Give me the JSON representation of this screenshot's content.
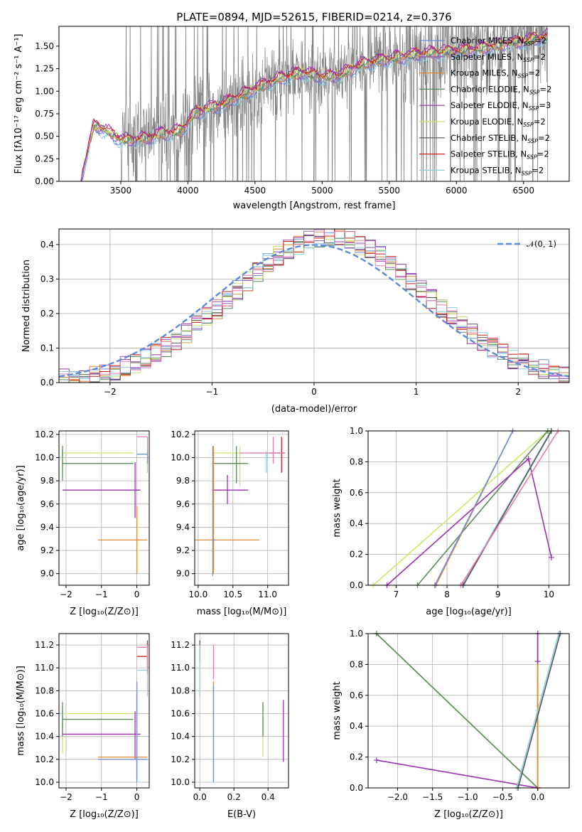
{
  "colors": {
    "Chabrier MILES": "#6f8fd6",
    "Salpeter MILES": "#9b59b6",
    "Kroupa MILES": "#e08a3c",
    "Chabrier ELODIE": "#5c8a5c",
    "Salpeter ELODIE": "#9b30b0",
    "Kroupa ELODIE": "#c8e86a",
    "Chabrier STELIB": "#555555",
    "Salpeter STELIB": "#cc1f1f",
    "Kroupa STELIB": "#8fd0dc",
    "pink": "#e67ab0",
    "normal": "#5b8bd6",
    "data": "#808080"
  },
  "chart_data": [
    {
      "id": "spectrum",
      "type": "line",
      "title": "PLATE=0894, MJD=52615, FIBERID=0214, z=0.376",
      "xlabel": "wavelength [Angstrom, rest frame]",
      "ylabel": "Flux [f_λ10^-17 erg cm^-2 s^-1 A^-1]",
      "xlim": [
        3040,
        6840
      ],
      "ylim": [
        0,
        1.72
      ],
      "xticks": [
        3500,
        4000,
        4500,
        5000,
        5500,
        6000,
        6500
      ],
      "yticks": [
        0.0,
        0.25,
        0.5,
        0.75,
        1.0,
        1.25,
        1.5
      ],
      "legend_position": "right",
      "legend": [
        "Chabrier MILES, N_SSP=2",
        "Salpeter MILES, N_SSP=2",
        "Kroupa MILES, N_SSP=2",
        "Chabrier ELODIE, N_SSP=2",
        "Salpeter ELODIE, N_SSP=3",
        "Kroupa ELODIE, N_SSP=2",
        "Chabrier STELIB, N_SSP=2",
        "Salpeter STELIB, N_SSP=2",
        "Kroupa STELIB, N_SSP=2"
      ],
      "continuum": {
        "x": [
          3200,
          3300,
          3400,
          3500,
          3700,
          3800,
          3950,
          4050,
          4150,
          4250,
          4400,
          4550,
          4700,
          4850,
          5000,
          5150,
          5300,
          5500,
          5700,
          5900,
          6100,
          6300,
          6500,
          6680
        ],
        "y": [
          0.0,
          0.62,
          0.55,
          0.45,
          0.47,
          0.52,
          0.55,
          0.75,
          0.8,
          0.85,
          0.95,
          1.05,
          1.15,
          1.2,
          1.15,
          1.18,
          1.3,
          1.35,
          1.4,
          1.43,
          1.45,
          1.5,
          1.55,
          1.6
        ]
      }
    },
    {
      "id": "residuals",
      "type": "line",
      "xlabel": "(data-model)/error",
      "ylabel": "Normed distribution",
      "xlim": [
        -2.5,
        2.5
      ],
      "ylim": [
        0,
        0.445
      ],
      "xticks": [
        -2,
        -1,
        0,
        1,
        2
      ],
      "yticks": [
        0.0,
        0.1,
        0.2,
        0.3,
        0.4
      ],
      "legend": [
        "𝒩(0, 1)"
      ],
      "bin_width": 0.1,
      "bins_center": [
        0.0,
        0.012,
        0.02,
        0.03,
        0.04,
        0.055,
        0.07,
        0.085,
        0.1,
        0.12,
        0.14,
        0.16,
        0.19,
        0.21,
        0.23,
        0.26,
        0.29,
        0.31,
        0.33,
        0.35,
        0.37,
        0.38,
        0.39,
        0.4,
        0.41,
        0.4,
        0.39,
        0.38,
        0.36,
        0.35,
        0.33,
        0.31,
        0.28,
        0.26,
        0.24,
        0.22,
        0.2,
        0.19,
        0.17,
        0.15,
        0.13,
        0.12,
        0.1,
        0.09,
        0.08,
        0.075,
        0.07,
        0.06,
        0.05,
        0.04
      ]
    },
    {
      "id": "age-vs-Z",
      "type": "scatter",
      "xlabel": "Z [log10(Z/Z⊙)]",
      "ylabel": "age  [log10(age/yr)]",
      "xlim": [
        -2.2,
        0.35
      ],
      "ylim": [
        8.9,
        10.23
      ],
      "xticks": [
        -2,
        -1,
        0
      ],
      "yticks": [
        9.0,
        9.2,
        9.4,
        9.6,
        9.8,
        10.0,
        10.2
      ],
      "series": [
        {
          "color": "Kroupa ELODIE",
          "h": [
            -2.1,
            -0.1,
            10.04
          ],
          "v": [
            -2.1,
            9.92,
            10.1
          ]
        },
        {
          "color": "Chabrier ELODIE",
          "h": [
            -2.1,
            -0.1,
            9.95
          ],
          "v": [
            -2.1,
            9.8,
            10.1
          ]
        },
        {
          "color": "Salpeter ELODIE",
          "h": [
            -2.1,
            0.1,
            9.72
          ],
          "v": [
            -0.05,
            9.48,
            9.96
          ]
        },
        {
          "color": "Kroupa MILES",
          "h": [
            -1.1,
            0.3,
            9.29
          ],
          "v": [
            0.0,
            9.0,
            9.58
          ]
        },
        {
          "color": "pink",
          "h": [
            0.0,
            0.3,
            10.18
          ],
          "v": [
            0.3,
            10.05,
            10.18
          ]
        },
        {
          "color": "Kroupa STELIB",
          "h": [
            0.0,
            0.3,
            10.03
          ],
          "v": [
            0.3,
            9.87,
            10.04
          ]
        },
        {
          "color": "Chabrier MILES",
          "h": [
            0.0,
            0.3,
            10.03
          ],
          "v": [
            0.3,
            9.95,
            10.05
          ]
        }
      ]
    },
    {
      "id": "age-vs-mass",
      "type": "scatter",
      "xlabel": "mass [log10(M/M⊙)]",
      "xlim": [
        9.95,
        11.3
      ],
      "ylim": [
        8.9,
        10.23
      ],
      "xticks": [
        10.0,
        10.5,
        11.0
      ],
      "yticks": [
        9.0,
        9.2,
        9.4,
        9.6,
        9.8,
        10.0,
        10.2
      ],
      "series": [
        {
          "color": "Kroupa ELODIE",
          "h": [
            10.2,
            10.62,
            10.04
          ],
          "v": [
            10.6,
            9.75,
            10.1
          ]
        },
        {
          "color": "Chabrier ELODIE",
          "h": [
            10.2,
            10.72,
            9.95
          ],
          "v": [
            10.55,
            9.78,
            10.1
          ]
        },
        {
          "color": "Salpeter ELODIE",
          "h": [
            10.2,
            10.72,
            9.72
          ],
          "v": [
            10.42,
            9.6,
            9.85
          ]
        },
        {
          "color": "Kroupa MILES",
          "h": [
            9.95,
            10.88,
            9.29
          ],
          "v": [
            10.22,
            9.0,
            10.1
          ]
        },
        {
          "color": "Chabrier MILES",
          "h": [
            10.2,
            10.25,
            9.29
          ],
          "v": [
            10.21,
            8.98,
            10.1
          ]
        },
        {
          "color": "Kroupa STELIB",
          "h": [
            10.75,
            11.1,
            10.04
          ],
          "v": [
            10.98,
            9.87,
            10.05
          ]
        },
        {
          "color": "Salpeter STELIB",
          "h": [
            11.05,
            11.25,
            10.04
          ],
          "v": [
            11.2,
            9.87,
            10.18
          ]
        },
        {
          "color": "pink",
          "h": [
            10.6,
            11.25,
            10.04
          ],
          "v": [
            11.08,
            9.95,
            10.18
          ]
        }
      ]
    },
    {
      "id": "weight-vs-age",
      "type": "line",
      "xlabel": "age  [log10(age/yr)]",
      "ylabel": "mass weight",
      "xlim": [
        6.45,
        10.4
      ],
      "ylim": [
        0,
        1
      ],
      "xticks": [
        7,
        8,
        9,
        10
      ],
      "yticks": [
        0.0,
        0.2,
        0.4,
        0.6,
        0.8,
        1.0
      ],
      "series": [
        {
          "color": "Kroupa ELODIE",
          "x": [
            6.55,
            9.98
          ],
          "y": [
            0.0,
            1.0
          ]
        },
        {
          "color": "Chabrier ELODIE",
          "x": [
            7.42,
            9.98
          ],
          "y": [
            0.0,
            1.0
          ]
        },
        {
          "color": "Salpeter ELODIE",
          "x": [
            6.82,
            9.6,
            10.05
          ],
          "y": [
            0.0,
            0.82,
            0.18
          ]
        },
        {
          "color": "Kroupa MILES",
          "x": [
            7.78,
            9.29
          ],
          "y": [
            0.0,
            1.0
          ]
        },
        {
          "color": "Chabrier MILES",
          "x": [
            7.76,
            9.29
          ],
          "y": [
            0.0,
            1.0
          ]
        },
        {
          "color": "Kroupa STELIB",
          "x": [
            8.3,
            10.04
          ],
          "y": [
            0.0,
            1.0
          ]
        },
        {
          "color": "Chabrier STELIB",
          "x": [
            8.32,
            10.05
          ],
          "y": [
            0.0,
            1.0
          ]
        },
        {
          "color": "pink",
          "x": [
            8.27,
            10.18
          ],
          "y": [
            0.0,
            1.0
          ]
        }
      ]
    },
    {
      "id": "mass-vs-Z",
      "type": "scatter",
      "xlabel": "Z [log10(Z/Z⊙)]",
      "ylabel": "mass [log10(M/M⊙)]",
      "xlim": [
        -2.2,
        0.35
      ],
      "ylim": [
        9.95,
        11.3
      ],
      "xticks": [
        -2,
        -1,
        0
      ],
      "yticks": [
        10.0,
        10.2,
        10.4,
        10.6,
        10.8,
        11.0,
        11.2
      ],
      "series": [
        {
          "color": "Kroupa ELODIE",
          "h": [
            -2.1,
            -0.1,
            10.6
          ],
          "v": [
            -2.1,
            10.25,
            10.65
          ]
        },
        {
          "color": "Chabrier ELODIE",
          "h": [
            -2.1,
            -0.1,
            10.55
          ],
          "v": [
            -2.1,
            10.4,
            10.7
          ]
        },
        {
          "color": "Salpeter ELODIE",
          "h": [
            -2.1,
            0.1,
            10.42
          ],
          "v": [
            -0.05,
            10.2,
            10.62
          ]
        },
        {
          "color": "Kroupa MILES",
          "h": [
            -1.1,
            0.3,
            10.22
          ],
          "v": [
            0.0,
            10.03,
            10.8
          ]
        },
        {
          "color": "Chabrier MILES",
          "h": [
            -1.1,
            0.3,
            10.2
          ],
          "v": [
            0.0,
            10.0,
            10.88
          ]
        },
        {
          "color": "Kroupa STELIB",
          "h": [
            0.0,
            0.3,
            10.98
          ],
          "v": [
            0.3,
            10.75,
            11.0
          ]
        },
        {
          "color": "Salpeter STELIB",
          "h": [
            0.0,
            0.3,
            11.1
          ],
          "v": [
            0.3,
            11.0,
            11.24
          ]
        },
        {
          "color": "pink",
          "h": [
            0.0,
            0.3,
            11.18
          ],
          "v": [
            0.3,
            10.95,
            11.2
          ]
        }
      ]
    },
    {
      "id": "mass-vs-EBV",
      "type": "scatter",
      "xlabel": "E(B-V)",
      "xlim": [
        -0.03,
        0.52
      ],
      "ylim": [
        9.95,
        11.3
      ],
      "xticks": [
        0.0,
        0.2,
        0.4
      ],
      "yticks": [
        10.0,
        10.2,
        10.4,
        10.6,
        10.8,
        11.0,
        11.2
      ],
      "series": [
        {
          "color": "Chabrier STELIB",
          "v": [
            0.0,
            11.05,
            11.24
          ]
        },
        {
          "color": "Kroupa STELIB",
          "v": [
            0.0,
            10.75,
            11.2
          ]
        },
        {
          "color": "pink",
          "v": [
            0.08,
            10.9,
            11.2
          ]
        },
        {
          "color": "Kroupa MILES",
          "v": [
            0.08,
            10.0,
            10.88
          ]
        },
        {
          "color": "Chabrier MILES",
          "v": [
            0.08,
            10.0,
            10.85
          ]
        },
        {
          "color": "Kroupa ELODIE",
          "v": [
            0.37,
            10.22,
            10.7
          ]
        },
        {
          "color": "Chabrier ELODIE",
          "v": [
            0.37,
            10.4,
            10.7
          ]
        },
        {
          "color": "Salpeter ELODIE",
          "v": [
            0.49,
            10.18,
            10.72
          ]
        }
      ]
    },
    {
      "id": "weight-vs-Z",
      "type": "line",
      "xlabel": "Z [log10(Z/Z⊙)]",
      "ylabel": "mass weight",
      "xlim": [
        -2.42,
        0.45
      ],
      "ylim": [
        0,
        1
      ],
      "xticks": [
        -2.0,
        -1.5,
        -1.0,
        -0.5,
        0.0
      ],
      "yticks": [
        0.0,
        0.2,
        0.4,
        0.6,
        0.8,
        1.0
      ],
      "series": [
        {
          "color": "Kroupa ELODIE",
          "x": [
            -2.3,
            0.0
          ],
          "y": [
            1.0,
            0.0
          ]
        },
        {
          "color": "Chabrier ELODIE",
          "x": [
            -2.3,
            0.0
          ],
          "y": [
            1.0,
            0.0
          ]
        },
        {
          "color": "Salpeter ELODIE",
          "x": [
            -2.3,
            0.0,
            0.0
          ],
          "y": [
            0.18,
            0.0,
            0.82
          ]
        },
        {
          "color": "Kroupa MILES",
          "x": [
            0.0,
            0.0
          ],
          "y": [
            0.0,
            1.0
          ]
        },
        {
          "color": "Kroupa STELIB",
          "x": [
            -0.3,
            0.3
          ],
          "y": [
            0.0,
            1.0
          ]
        },
        {
          "color": "Chabrier STELIB",
          "x": [
            -0.28,
            0.32
          ],
          "y": [
            0.0,
            1.0
          ]
        },
        {
          "color": "Salpeter ELODIE",
          "x": [
            0.0,
            0.0
          ],
          "y": [
            0.82,
            1.0
          ]
        }
      ]
    }
  ]
}
